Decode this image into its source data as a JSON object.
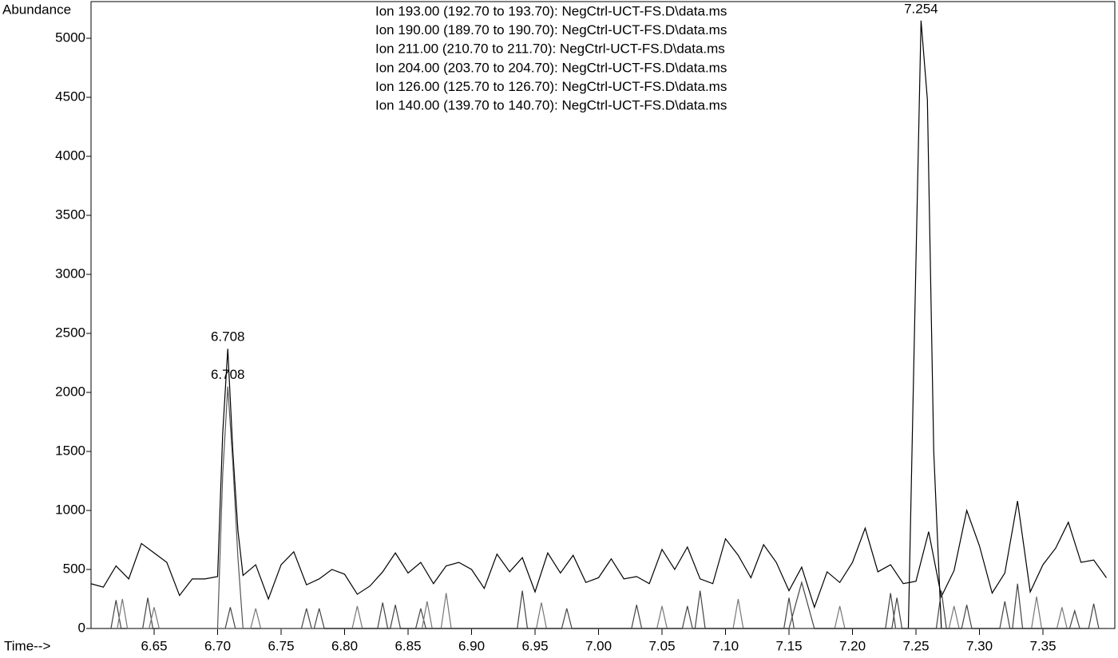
{
  "chart_data": {
    "type": "line",
    "ylabel": "Abundance",
    "xlabel": "Time-->",
    "xlim": [
      6.6,
      7.4
    ],
    "ylim": [
      0,
      5300
    ],
    "xticks": [
      6.65,
      {
        "value": 6.7,
        "label": "6.70"
      },
      6.75,
      {
        "value": 6.8,
        "label": "6.80"
      },
      6.85,
      {
        "value": 6.9,
        "label": "6.90"
      },
      6.95,
      {
        "value": 7.0,
        "label": "7.00"
      },
      7.05,
      {
        "value": 7.1,
        "label": "7.10"
      },
      7.15,
      {
        "value": 7.2,
        "label": "7.20"
      },
      7.25,
      {
        "value": 7.3,
        "label": "7.30"
      },
      7.35
    ],
    "yticks": [
      0,
      500,
      1000,
      1500,
      2000,
      2500,
      3000,
      3500,
      4000,
      4500,
      5000
    ],
    "series": [
      {
        "name": "Ion 193.00 (192.70 to 193.70): NegCtrl-UCT-FS.D\\data.ms",
        "color": "#000000",
        "x": [
          6.6,
          6.61,
          6.62,
          6.63,
          6.64,
          6.65,
          6.66,
          6.67,
          6.68,
          6.69,
          6.7,
          6.704,
          6.708,
          6.712,
          6.716,
          6.72,
          6.73,
          6.74,
          6.75,
          6.76,
          6.77,
          6.78,
          6.79,
          6.8,
          6.81,
          6.82,
          6.83,
          6.84,
          6.85,
          6.86,
          6.87,
          6.88,
          6.89,
          6.9,
          6.91,
          6.92,
          6.93,
          6.94,
          6.95,
          6.96,
          6.97,
          6.98,
          6.99,
          7.0,
          7.01,
          7.02,
          7.03,
          7.04,
          7.05,
          7.06,
          7.07,
          7.08,
          7.09,
          7.1,
          7.11,
          7.12,
          7.13,
          7.14,
          7.15,
          7.16,
          7.17,
          7.18,
          7.19,
          7.2,
          7.21,
          7.22,
          7.23,
          7.24,
          7.25,
          7.26,
          7.27,
          7.28,
          7.29,
          7.3,
          7.31,
          7.32,
          7.33,
          7.34,
          7.35,
          7.36,
          7.37,
          7.38,
          7.39,
          7.4
        ],
        "values": [
          380,
          350,
          530,
          420,
          720,
          640,
          560,
          280,
          420,
          420,
          440,
          1650,
          2370,
          1500,
          830,
          450,
          540,
          250,
          540,
          650,
          370,
          420,
          500,
          460,
          290,
          360,
          480,
          640,
          470,
          560,
          380,
          530,
          560,
          500,
          340,
          630,
          480,
          600,
          310,
          640,
          470,
          620,
          390,
          430,
          590,
          420,
          440,
          380,
          670,
          500,
          690,
          420,
          380,
          760,
          620,
          430,
          710,
          560,
          320,
          520,
          180,
          480,
          390,
          560,
          850,
          480,
          540,
          380,
          400,
          820,
          270,
          490,
          1000,
          700,
          300,
          470,
          1080,
          310,
          540,
          680,
          900,
          560,
          580,
          430
        ]
      },
      {
        "name": "Ion 190.00 (189.70 to 190.70): NegCtrl-UCT-FS.D\\data.ms",
        "color": "#000000",
        "x": [
          6.6,
          7.244,
          7.249,
          7.254,
          7.259,
          7.264,
          7.27,
          7.4
        ],
        "values": [
          0,
          0,
          2600,
          5150,
          4480,
          1500,
          0,
          0
        ]
      },
      {
        "name": "Ion 211.00 (210.70 to 211.70): NegCtrl-UCT-FS.D\\data.ms",
        "color": "#555555",
        "x": [
          6.6,
          6.7,
          6.704,
          6.708,
          6.712,
          6.716,
          6.72,
          7.4
        ],
        "values": [
          0,
          0,
          1300,
          2050,
          1400,
          600,
          0,
          0
        ]
      },
      {
        "name": "Ion 204.00 (203.70 to 204.70): NegCtrl-UCT-FS.D\\data.ms",
        "color": "#444444",
        "x": [
          6.616,
          6.62,
          6.624,
          6.641,
          6.645,
          6.649,
          6.706,
          6.71,
          6.714,
          6.766,
          6.77,
          6.774,
          6.826,
          6.83,
          6.834,
          6.856,
          6.86,
          6.864,
          6.936,
          6.94,
          6.944,
          7.026,
          7.03,
          7.034,
          7.076,
          7.08,
          7.084,
          7.146,
          7.15,
          7.154,
          7.226,
          7.23,
          7.234,
          7.266,
          7.27,
          7.274,
          7.326,
          7.33,
          7.334,
          7.386,
          7.39,
          7.394
        ],
        "values": [
          0,
          240,
          0,
          0,
          260,
          0,
          0,
          180,
          0,
          0,
          170,
          0,
          0,
          220,
          0,
          0,
          170,
          0,
          0,
          320,
          0,
          0,
          200,
          0,
          0,
          320,
          0,
          0,
          260,
          0,
          0,
          300,
          0,
          0,
          320,
          0,
          0,
          380,
          0,
          0,
          210,
          0
        ]
      },
      {
        "name": "Ion 126.00 (125.70 to 126.70): NegCtrl-UCT-FS.D\\data.ms",
        "color": "#777777",
        "x": [
          6.621,
          6.625,
          6.629,
          6.646,
          6.65,
          6.654,
          6.726,
          6.73,
          6.734,
          6.806,
          6.81,
          6.814,
          6.861,
          6.865,
          6.869,
          6.876,
          6.88,
          6.884,
          6.951,
          6.955,
          6.959,
          7.046,
          7.05,
          7.054,
          7.106,
          7.11,
          7.114,
          7.186,
          7.19,
          7.194,
          7.276,
          7.28,
          7.284,
          7.341,
          7.345,
          7.349,
          7.361,
          7.365,
          7.369
        ],
        "values": [
          0,
          250,
          0,
          0,
          180,
          0,
          0,
          170,
          0,
          0,
          190,
          0,
          0,
          230,
          0,
          0,
          300,
          0,
          0,
          220,
          0,
          0,
          190,
          0,
          0,
          250,
          0,
          0,
          190,
          0,
          0,
          190,
          0,
          0,
          270,
          0,
          0,
          180,
          0
        ]
      },
      {
        "name": "Ion 140.00 (139.70 to 140.70): NegCtrl-UCT-FS.D\\data.ms",
        "color": "#444444",
        "x": [
          6.776,
          6.78,
          6.784,
          6.836,
          6.84,
          6.844,
          6.971,
          6.975,
          6.979,
          7.066,
          7.07,
          7.074,
          7.15,
          7.16,
          7.17,
          7.231,
          7.235,
          7.239,
          7.286,
          7.29,
          7.294,
          7.316,
          7.32,
          7.324,
          7.371,
          7.375,
          7.379
        ],
        "values": [
          0,
          170,
          0,
          0,
          200,
          0,
          0,
          170,
          0,
          0,
          190,
          0,
          0,
          390,
          0,
          0,
          260,
          0,
          0,
          200,
          0,
          0,
          230,
          0,
          0,
          150,
          0
        ]
      }
    ],
    "annotations": [
      {
        "label": "6.708",
        "x": 6.708,
        "y": 2370
      },
      {
        "label": "6.708",
        "x": 6.708,
        "y": 2050
      },
      {
        "label": "7.254",
        "x": 7.254,
        "y": 5150
      }
    ]
  }
}
